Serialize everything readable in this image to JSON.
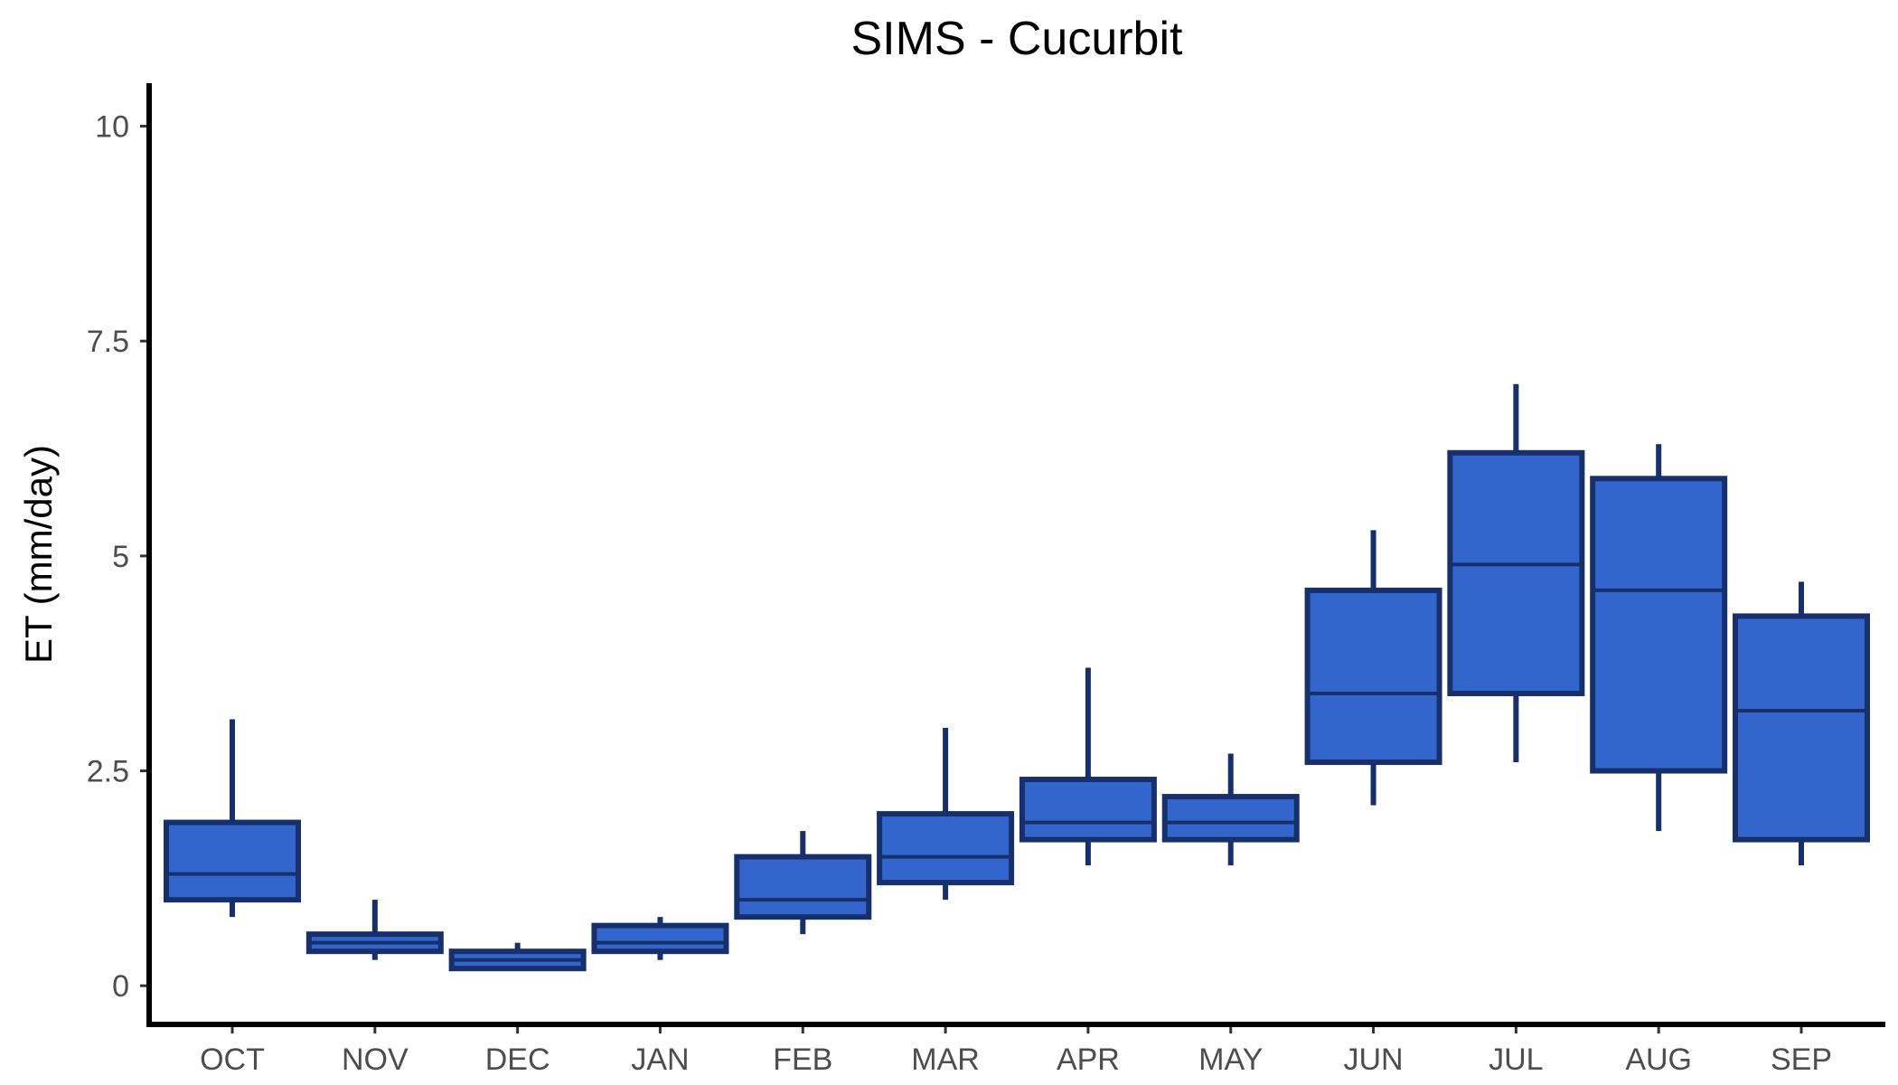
{
  "chart_data": {
    "type": "boxplot",
    "title": "SIMS - Cucurbit",
    "xlabel": "",
    "ylabel": "ET (mm/day)",
    "ylim": [
      -0.45,
      10.5
    ],
    "yticks": [
      0,
      2.5,
      5,
      7.5,
      10
    ],
    "ytick_labels": [
      "0",
      "2.5",
      "5",
      "7.5",
      "10"
    ],
    "grid": false,
    "fill_color": "#3366cc",
    "stroke_color": "#17306b",
    "categories": [
      "OCT",
      "NOV",
      "DEC",
      "JAN",
      "FEB",
      "MAR",
      "APR",
      "MAY",
      "JUN",
      "JUL",
      "AUG",
      "SEP"
    ],
    "boxes": [
      {
        "min": 0.8,
        "q1": 1.0,
        "median": 1.3,
        "q3": 1.9,
        "max": 3.1
      },
      {
        "min": 0.3,
        "q1": 0.4,
        "median": 0.5,
        "q3": 0.6,
        "max": 1.0
      },
      {
        "min": 0.2,
        "q1": 0.2,
        "median": 0.3,
        "q3": 0.4,
        "max": 0.5
      },
      {
        "min": 0.3,
        "q1": 0.4,
        "median": 0.5,
        "q3": 0.7,
        "max": 0.8
      },
      {
        "min": 0.6,
        "q1": 0.8,
        "median": 1.0,
        "q3": 1.5,
        "max": 1.8
      },
      {
        "min": 1.0,
        "q1": 1.2,
        "median": 1.5,
        "q3": 2.0,
        "max": 3.0
      },
      {
        "min": 1.4,
        "q1": 1.7,
        "median": 1.9,
        "q3": 2.4,
        "max": 3.7
      },
      {
        "min": 1.4,
        "q1": 1.7,
        "median": 1.9,
        "q3": 2.2,
        "max": 2.7
      },
      {
        "min": 2.1,
        "q1": 2.6,
        "median": 3.4,
        "q3": 4.6,
        "max": 5.3
      },
      {
        "min": 2.6,
        "q1": 3.4,
        "median": 4.9,
        "q3": 6.2,
        "max": 7.0
      },
      {
        "min": 1.8,
        "q1": 2.5,
        "median": 4.6,
        "q3": 5.9,
        "max": 6.3
      },
      {
        "min": 1.4,
        "q1": 1.7,
        "median": 3.2,
        "q3": 4.3,
        "max": 4.7
      }
    ]
  }
}
